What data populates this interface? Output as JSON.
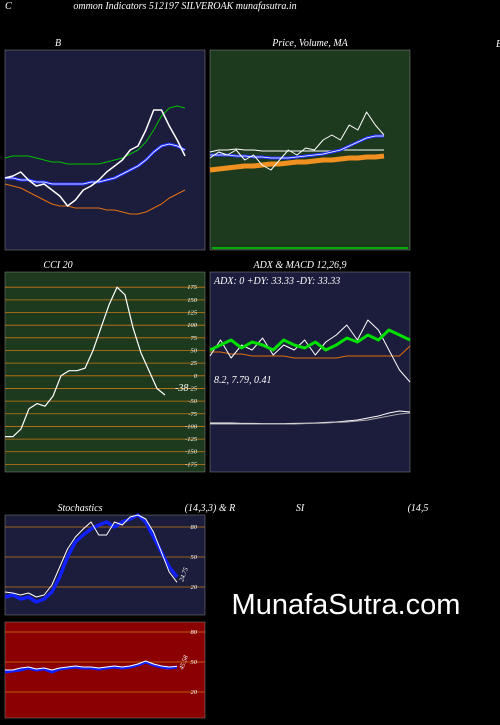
{
  "header": {
    "left": "C",
    "title": "ommon  Indicators 512197 SILVEROAK munafasutra.in",
    "right": "E"
  },
  "watermark": "MunafaSutra.com",
  "chart_data": [
    {
      "type": "line",
      "title": "B",
      "ylim": [
        0,
        100
      ],
      "series": [
        {
          "color": "#00c000",
          "width": 1,
          "values": [
            46,
            47,
            47,
            47,
            46,
            45,
            44,
            44,
            43,
            43,
            43,
            43,
            43,
            44,
            45,
            46,
            48,
            50,
            54,
            60,
            67,
            71,
            72,
            71
          ]
        },
        {
          "color": "#e07010",
          "width": 1,
          "values": [
            33,
            32,
            31,
            29,
            27,
            25,
            23,
            22,
            22,
            21,
            21,
            21,
            21,
            20,
            20,
            19,
            18,
            18,
            19,
            21,
            23,
            26,
            28,
            30
          ]
        },
        {
          "color": "#2030ff",
          "width": 3,
          "double": true,
          "values": [
            36,
            36,
            35,
            35,
            34,
            34,
            33,
            33,
            33,
            33,
            33,
            34,
            34,
            35,
            36,
            38,
            40,
            42,
            45,
            49,
            52,
            53,
            52,
            50
          ]
        },
        {
          "color": "#ffffff",
          "width": 1.5,
          "values": [
            36,
            37,
            39,
            35,
            32,
            33,
            30,
            27,
            22,
            25,
            30,
            32,
            35,
            39,
            42,
            45,
            50,
            52,
            60,
            70,
            70,
            62,
            55,
            47
          ]
        }
      ]
    },
    {
      "type": "line",
      "title": "Price, Volume, MA",
      "ylim": [
        0,
        100
      ],
      "series": [
        {
          "color": "#f09020",
          "width": 5,
          "values": [
            40,
            40.5,
            41,
            41.5,
            42,
            42,
            42.5,
            43,
            43,
            43.5,
            44,
            44,
            44.5,
            45,
            45,
            45.5,
            46,
            46,
            46.5,
            46.5,
            47
          ]
        },
        {
          "color": "#ffffff",
          "width": 1,
          "values": [
            49,
            50,
            50,
            50.5,
            50,
            50,
            49.5,
            49.5,
            49.5,
            49.5,
            49.5,
            49.5,
            49.5,
            49.5,
            49.5,
            50,
            50,
            50,
            50,
            50,
            50
          ]
        },
        {
          "color": "#2030ff",
          "width": 3,
          "double": true,
          "values": [
            47.5,
            47.5,
            47.5,
            47,
            47,
            46.5,
            46.5,
            46,
            46,
            46,
            46.5,
            47,
            47.5,
            48,
            49,
            50,
            52,
            54,
            56,
            57,
            57
          ]
        },
        {
          "color": "#ffffff",
          "width": 1,
          "values": [
            46,
            49,
            47.5,
            50,
            45,
            47.5,
            42.5,
            40,
            45,
            50,
            47.5,
            51,
            50,
            55,
            57.5,
            55,
            62.5,
            60,
            69,
            62.5,
            57.5
          ]
        }
      ]
    },
    {
      "type": "line",
      "title": "CCI 20",
      "ylim": [
        -190,
        205
      ],
      "yticks": [
        175,
        150,
        125,
        100,
        75,
        50,
        25,
        0,
        -25,
        -50,
        -75,
        -100,
        -125,
        -150,
        -175
      ],
      "annotation": "-38",
      "series": [
        {
          "color": "#ffffff",
          "width": 1.2,
          "values": [
            -120,
            -120,
            -105,
            -65,
            -55,
            -60,
            -40,
            0,
            10,
            10,
            15,
            50,
            95,
            140,
            175,
            160,
            95,
            45,
            10,
            -25,
            -38
          ]
        }
      ]
    },
    {
      "type": "line",
      "title": "ADX  & MACD 12,26,9",
      "ylim": [
        0,
        100
      ],
      "annotations": [
        "ADX: 0  +DY: 33.33 -DY: 33.33",
        "8.2,  7.79,  0.41"
      ],
      "series": [
        {
          "color": "#e07010",
          "width": 1,
          "values": [
            60,
            60,
            59,
            59,
            58,
            58,
            58,
            58,
            57,
            57,
            57,
            57,
            57,
            58,
            58,
            58,
            58,
            58,
            58,
            63
          ]
        },
        {
          "color": "#ffffff",
          "width": 1,
          "values": [
            58,
            66,
            57,
            63.5,
            61,
            67,
            58.5,
            63.5,
            61,
            66,
            58.5,
            65,
            68.5,
            73.5,
            66,
            76,
            71,
            61,
            51,
            45
          ]
        },
        {
          "color": "#00e000",
          "width": 3,
          "values": [
            61,
            63.5,
            66,
            62,
            65,
            63.5,
            61,
            66,
            63.5,
            62,
            65,
            61,
            63.5,
            67,
            65,
            68.5,
            66,
            71,
            68.5,
            66
          ]
        },
        {
          "color": "#ffffff",
          "width": 1,
          "values": [
            24.5,
            24.5,
            24.5,
            24.3,
            24.3,
            24.2,
            24.2,
            24.2,
            24.3,
            24.4,
            24.5,
            24.8,
            25,
            25.5,
            26,
            27,
            28,
            29.5,
            30.5,
            30
          ]
        },
        {
          "color": "#aaaaaa",
          "width": 1,
          "values": [
            24,
            24,
            24,
            24,
            24,
            24,
            24,
            24,
            24,
            24.2,
            24.3,
            24.5,
            24.8,
            25,
            25.5,
            26,
            27,
            28,
            29,
            29.5
          ]
        }
      ]
    },
    {
      "type": "line",
      "title": "Stochastics",
      "subtitle": "(14,3,3) & R",
      "ylim": [
        -8,
        92
      ],
      "yticks": [
        80,
        50,
        20
      ],
      "annotation": "24.75",
      "series": [
        {
          "color": "#1020ff",
          "width": 3.5,
          "values": [
            10,
            12,
            8,
            10,
            5,
            8,
            15,
            30,
            50,
            65,
            72,
            78,
            82,
            85,
            80,
            85,
            88,
            92,
            85,
            70,
            55,
            40,
            30
          ]
        },
        {
          "color": "#ffffff",
          "width": 1,
          "values": [
            15,
            14,
            12,
            14,
            10,
            12,
            22,
            40,
            58,
            70,
            78,
            85,
            72,
            72,
            85,
            82,
            90,
            92,
            88,
            75,
            55,
            35,
            24.75
          ]
        }
      ]
    },
    {
      "type": "line",
      "title": "SI",
      "subtitle": "(14,5",
      "ylim": [
        -6,
        90
      ],
      "yticks": [
        80,
        50,
        20
      ],
      "annotation": "45.58",
      "series": [
        {
          "color": "#1020ff",
          "width": 3,
          "values": [
            40,
            41,
            42,
            44,
            42,
            43,
            40,
            43,
            44,
            45,
            44,
            44,
            43,
            44,
            45,
            44,
            45,
            47,
            50,
            47,
            45,
            44,
            45
          ]
        },
        {
          "color": "#ffffff",
          "width": 1,
          "values": [
            42,
            42,
            44,
            45,
            43,
            44,
            42,
            44,
            45,
            46,
            45,
            45,
            44,
            45,
            46,
            45,
            46,
            48,
            51,
            48,
            46,
            45,
            45.58
          ]
        }
      ]
    }
  ]
}
